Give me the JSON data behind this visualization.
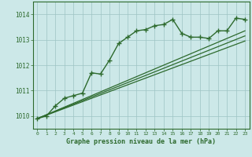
{
  "main_line_x": [
    0,
    1,
    2,
    3,
    4,
    5,
    6,
    7,
    8,
    9,
    10,
    11,
    12,
    13,
    14,
    15,
    16,
    17,
    18,
    19,
    20,
    21,
    22,
    23
  ],
  "main_line_y": [
    1009.9,
    1010.0,
    1010.4,
    1010.7,
    1010.8,
    1010.9,
    1011.7,
    1011.65,
    1012.2,
    1012.85,
    1013.1,
    1013.35,
    1013.4,
    1013.55,
    1013.6,
    1013.8,
    1013.25,
    1013.1,
    1013.1,
    1013.05,
    1013.35,
    1013.35,
    1013.85,
    1013.8
  ],
  "line2_x": [
    0,
    23
  ],
  "line2_y": [
    1009.9,
    1013.35
  ],
  "line3_x": [
    0,
    23
  ],
  "line3_y": [
    1009.9,
    1013.15
  ],
  "line4_x": [
    0,
    23
  ],
  "line4_y": [
    1009.9,
    1012.95
  ],
  "line_color": "#2d6a2d",
  "bg_color": "#cce8e8",
  "grid_color": "#9ec4c4",
  "xlabel": "Graphe pression niveau de la mer (hPa)",
  "xlabel_color": "#2d6a2d",
  "tick_color": "#2d6a2d",
  "ylim": [
    1009.5,
    1014.5
  ],
  "yticks": [
    1010,
    1011,
    1012,
    1013,
    1014
  ],
  "xlim": [
    -0.5,
    23.5
  ],
  "xticks": [
    0,
    1,
    2,
    3,
    4,
    5,
    6,
    7,
    8,
    9,
    10,
    11,
    12,
    13,
    14,
    15,
    16,
    17,
    18,
    19,
    20,
    21,
    22,
    23
  ]
}
